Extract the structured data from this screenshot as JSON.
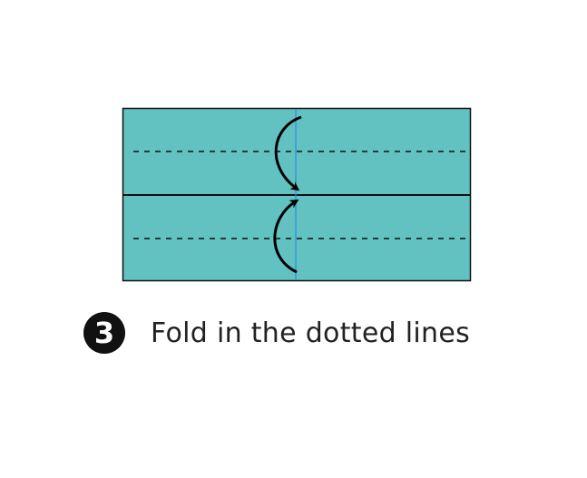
{
  "step": {
    "number": "3",
    "instruction": "Fold in the dotted lines"
  },
  "colors": {
    "paper_fill": "#62c1c1",
    "outline": "#111111",
    "center_line": "#2a8fd6",
    "fold_line": "#111111",
    "arrow": "#000000"
  },
  "icons": {
    "fold_arrow_top": "curved-arrow-down-icon",
    "fold_arrow_bottom": "curved-arrow-up-icon",
    "step_badge": "numbered-circle-icon"
  }
}
